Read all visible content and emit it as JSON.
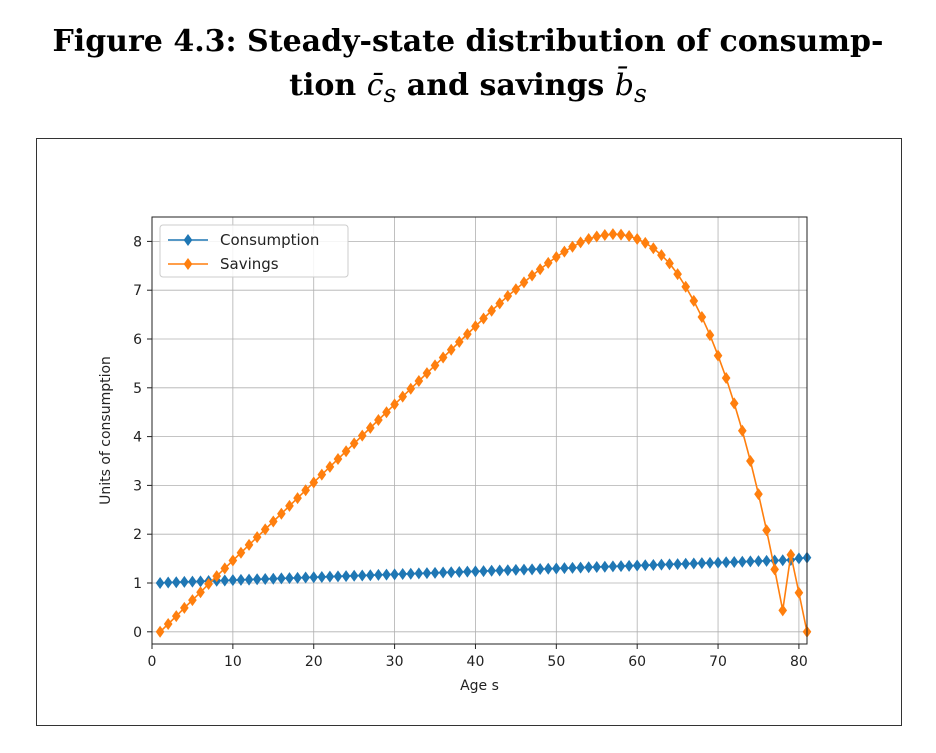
{
  "figure": {
    "label": "Figure 4.3:",
    "title_line1": "Steady-state distribution of consump-",
    "title_line2_a": "tion ",
    "title_line2_csym": "c̄",
    "title_line2_csub": "s",
    "title_line2_b": " and savings ",
    "title_line2_bsym": "b̄",
    "title_line2_bsub": "s"
  },
  "chart_data": {
    "type": "line",
    "title": "",
    "xlabel": "Age s",
    "ylabel": "Units of consumption",
    "xlim": [
      0,
      81
    ],
    "ylim": [
      -0.25,
      8.5
    ],
    "xticks": [
      0,
      10,
      20,
      30,
      40,
      50,
      60,
      70,
      80
    ],
    "yticks": [
      0,
      1,
      2,
      3,
      4,
      5,
      6,
      7,
      8
    ],
    "grid": true,
    "legend_position": "top-left",
    "x": [
      1,
      2,
      3,
      4,
      5,
      6,
      7,
      8,
      9,
      10,
      11,
      12,
      13,
      14,
      15,
      16,
      17,
      18,
      19,
      20,
      21,
      22,
      23,
      24,
      25,
      26,
      27,
      28,
      29,
      30,
      31,
      32,
      33,
      34,
      35,
      36,
      37,
      38,
      39,
      40,
      41,
      42,
      43,
      44,
      45,
      46,
      47,
      48,
      49,
      50,
      51,
      52,
      53,
      54,
      55,
      56,
      57,
      58,
      59,
      60,
      61,
      62,
      63,
      64,
      65,
      66,
      67,
      68,
      69,
      70,
      71,
      72,
      73,
      74,
      75,
      76,
      77,
      78,
      79,
      80,
      81
    ],
    "series": [
      {
        "name": "Consumption",
        "color": "#1f77b4",
        "marker": "diamond",
        "values": [
          1.0,
          1.01,
          1.016,
          1.022,
          1.028,
          1.034,
          1.04,
          1.046,
          1.052,
          1.058,
          1.064,
          1.07,
          1.076,
          1.082,
          1.088,
          1.094,
          1.1,
          1.106,
          1.112,
          1.118,
          1.124,
          1.13,
          1.136,
          1.142,
          1.148,
          1.154,
          1.16,
          1.166,
          1.172,
          1.178,
          1.184,
          1.19,
          1.196,
          1.202,
          1.208,
          1.214,
          1.22,
          1.226,
          1.232,
          1.238,
          1.244,
          1.25,
          1.256,
          1.262,
          1.268,
          1.274,
          1.28,
          1.286,
          1.292,
          1.298,
          1.304,
          1.31,
          1.316,
          1.322,
          1.328,
          1.334,
          1.34,
          1.346,
          1.352,
          1.358,
          1.364,
          1.37,
          1.376,
          1.382,
          1.388,
          1.394,
          1.4,
          1.406,
          1.412,
          1.418,
          1.424,
          1.43,
          1.436,
          1.442,
          1.448,
          1.454,
          1.46,
          1.466,
          1.472,
          1.505,
          1.52
        ]
      },
      {
        "name": "Savings",
        "color": "#ff7f0e",
        "marker": "diamond",
        "values": [
          0.0,
          0.16,
          0.32,
          0.49,
          0.65,
          0.81,
          0.98,
          1.14,
          1.3,
          1.46,
          1.62,
          1.78,
          1.94,
          2.1,
          2.26,
          2.42,
          2.58,
          2.74,
          2.9,
          3.06,
          3.22,
          3.38,
          3.54,
          3.7,
          3.86,
          4.02,
          4.18,
          4.34,
          4.5,
          4.66,
          4.82,
          4.98,
          5.14,
          5.3,
          5.46,
          5.62,
          5.78,
          5.94,
          6.1,
          6.26,
          6.42,
          6.58,
          6.73,
          6.88,
          7.02,
          7.16,
          7.3,
          7.43,
          7.56,
          7.68,
          7.79,
          7.89,
          7.98,
          8.05,
          8.1,
          8.13,
          8.15,
          8.14,
          8.11,
          8.05,
          7.97,
          7.86,
          7.72,
          7.55,
          7.33,
          7.07,
          6.78,
          6.45,
          6.08,
          5.66,
          5.2,
          4.68,
          4.12,
          3.5,
          2.82,
          2.08,
          1.28,
          0.44,
          1.58,
          0.8,
          0.0
        ]
      }
    ]
  }
}
